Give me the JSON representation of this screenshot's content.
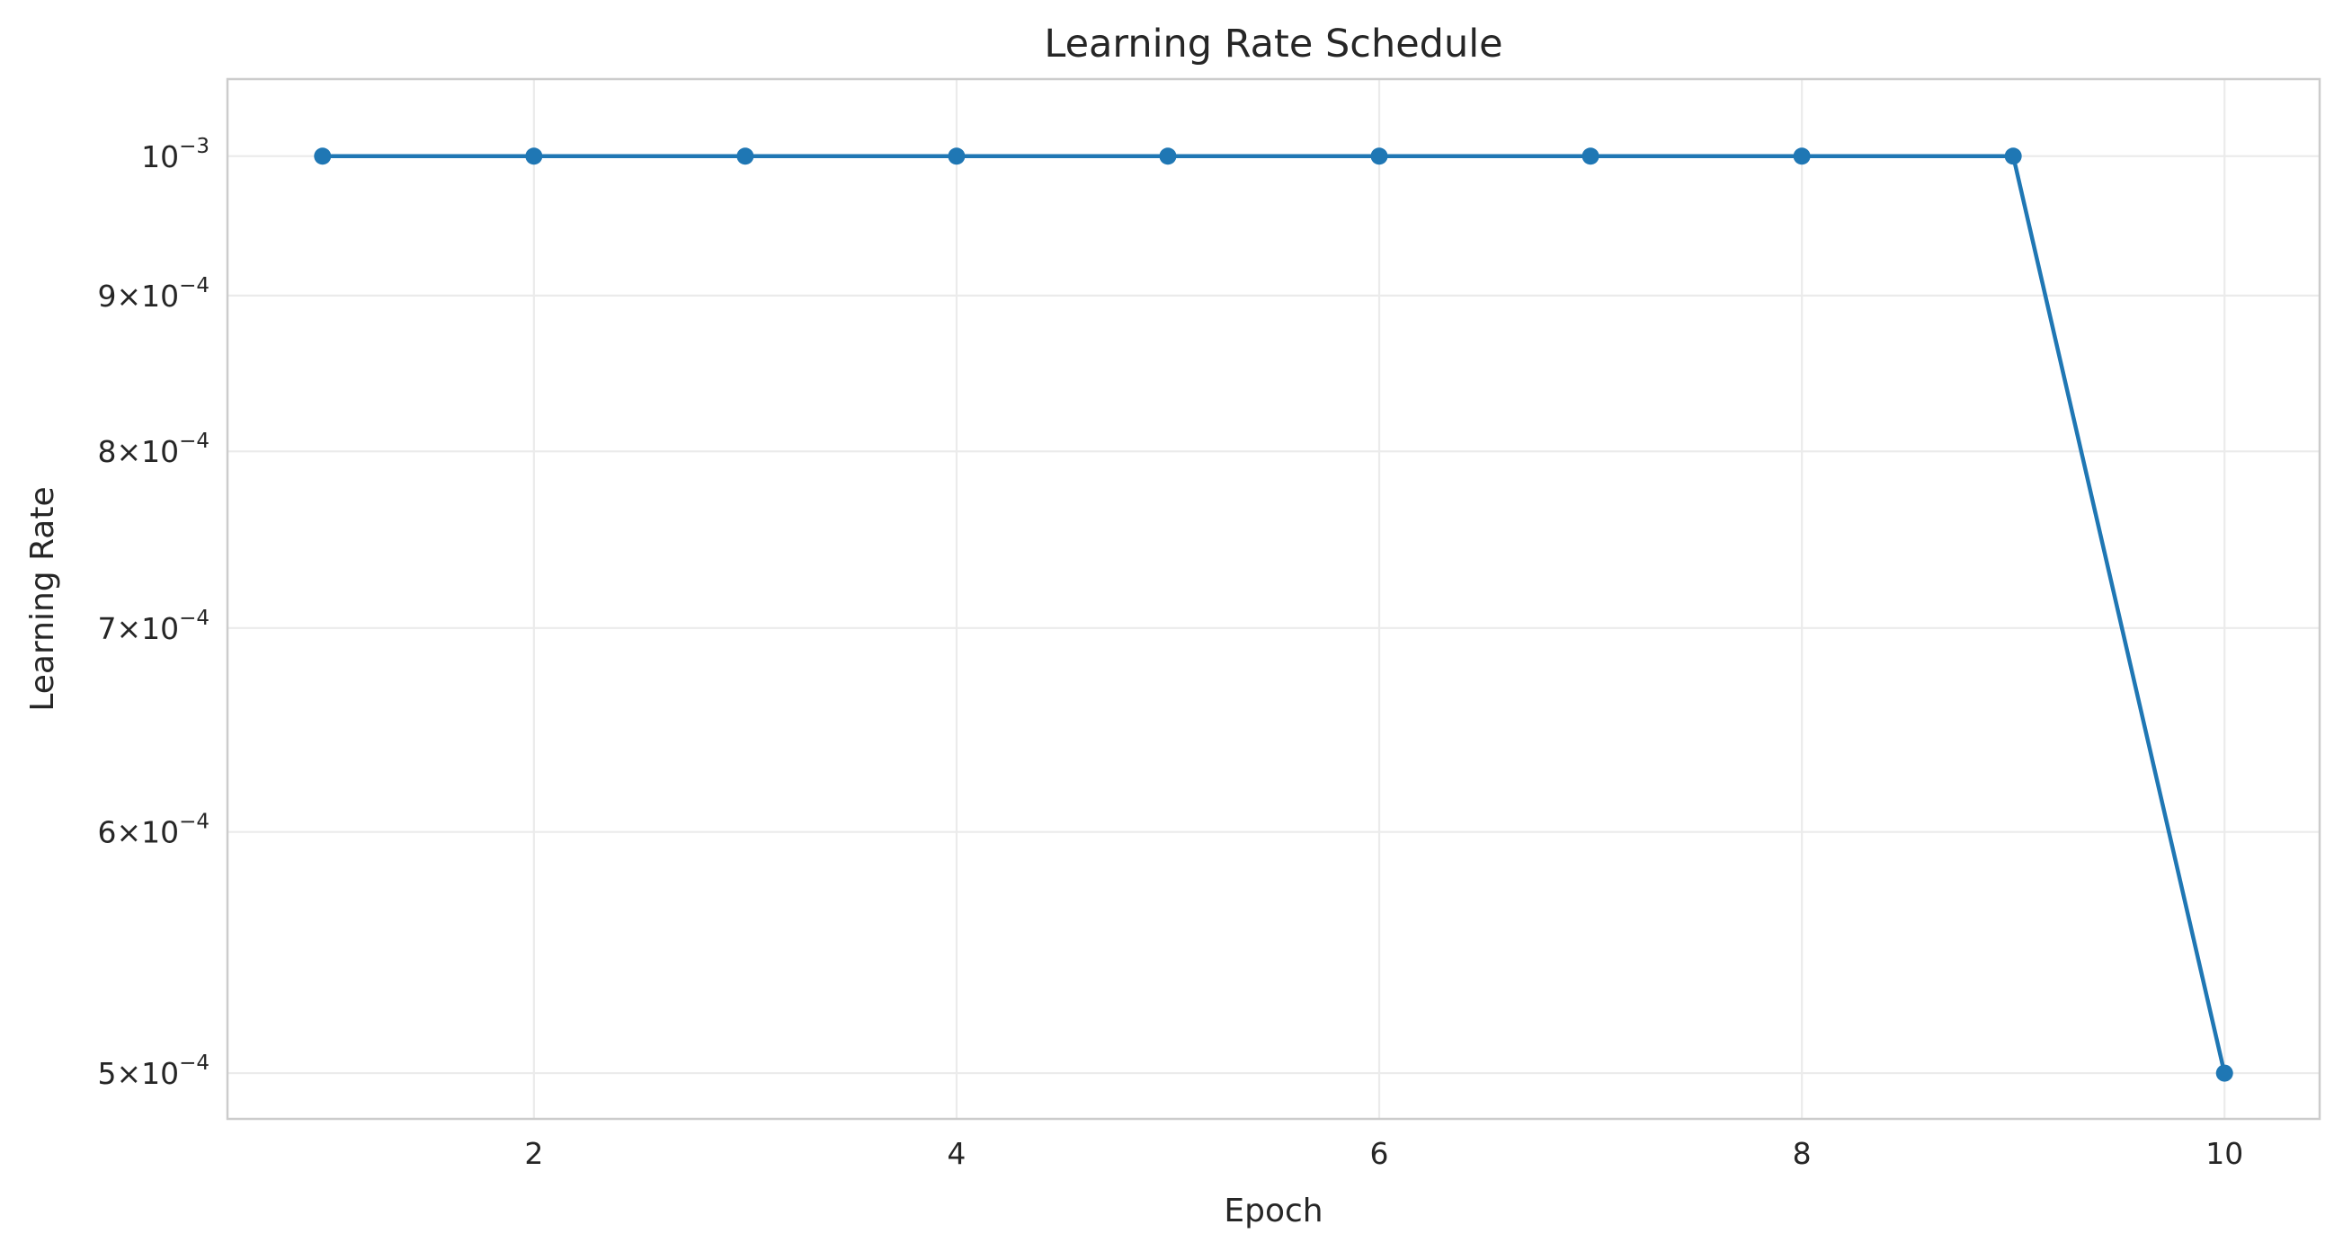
{
  "chart_data": {
    "type": "line",
    "title": "Learning Rate Schedule",
    "xlabel": "Epoch",
    "ylabel": "Learning Rate",
    "x": [
      1,
      2,
      3,
      4,
      5,
      6,
      7,
      8,
      9,
      10
    ],
    "series": [
      {
        "values": [
          0.001,
          0.001,
          0.001,
          0.001,
          0.001,
          0.001,
          0.001,
          0.001,
          0.001,
          0.0005
        ],
        "color": "#1f77b4"
      }
    ],
    "xlim": [
      0.55,
      10.45
    ],
    "ylim": [
      0.000483,
      0.00106
    ],
    "yscale": "log",
    "xticks": [
      {
        "value": 2,
        "label": "2"
      },
      {
        "value": 4,
        "label": "4"
      },
      {
        "value": 6,
        "label": "6"
      },
      {
        "value": 8,
        "label": "8"
      },
      {
        "value": 10,
        "label": "10"
      }
    ],
    "yticks": [
      {
        "value": 0.001,
        "base": "10",
        "exp": "−3"
      },
      {
        "value": 0.0009,
        "base": "9×10",
        "exp": "−4"
      },
      {
        "value": 0.0008,
        "base": "8×10",
        "exp": "−4"
      },
      {
        "value": 0.0007,
        "base": "7×10",
        "exp": "−4"
      },
      {
        "value": 0.0006,
        "base": "6×10",
        "exp": "−4"
      },
      {
        "value": 0.0005,
        "base": "5×10",
        "exp": "−4"
      }
    ],
    "grid": true,
    "legend": "none",
    "marker": "circle"
  }
}
